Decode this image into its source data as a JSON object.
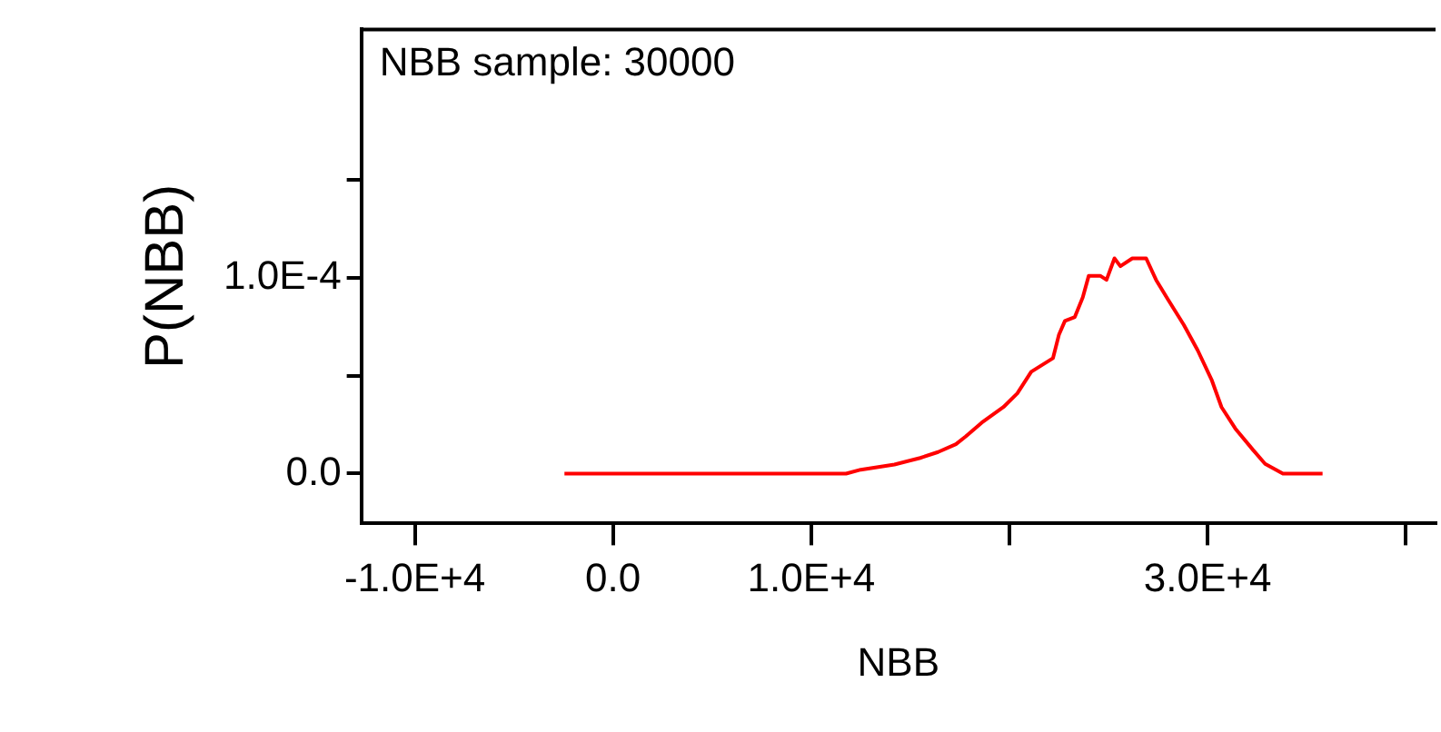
{
  "chart_data": {
    "type": "line",
    "annotations": [
      "NBB sample: 30000"
    ],
    "xlabel": "NBB",
    "ylabel": "P(NBB)",
    "xlim": [
      -12700,
      41500
    ],
    "ylim": [
      -2.55e-05,
      0.000227
    ],
    "xticks": [
      {
        "value": -10000,
        "label": "-1.0E+4"
      },
      {
        "value": 0,
        "label": "0.0"
      },
      {
        "value": 10000,
        "label": "1.0E+4"
      },
      {
        "value": 20000,
        "label": null
      },
      {
        "value": 30000,
        "label": "3.0E+4"
      },
      {
        "value": 40000,
        "label": null
      }
    ],
    "yticks": [
      {
        "value": 0,
        "label": "0.0"
      },
      {
        "value": 5e-05,
        "label": null
      },
      {
        "value": 0.0001,
        "label": "1.0E-4"
      },
      {
        "value": 0.00015,
        "label": null
      }
    ],
    "grid": false,
    "marker": "none",
    "line_style": "solid",
    "series": [
      {
        "color": "#ff0000",
        "x": [
          -2450,
          11760,
          12500,
          14200,
          15500,
          16400,
          17300,
          17800,
          18600,
          19700,
          20400,
          21100,
          22200,
          22500,
          22800,
          23300,
          23700,
          24000,
          24600,
          24900,
          25300,
          25600,
          26200,
          26900,
          27400,
          28000,
          28800,
          29500,
          30200,
          30700,
          31400,
          32300,
          32900,
          33800,
          35800
        ],
        "values": [
          0,
          0,
          2e-06,
          4.6e-06,
          8e-06,
          1.1e-05,
          1.5e-05,
          1.9e-05,
          2.6e-05,
          3.4e-05,
          4.1e-05,
          5.2e-05,
          5.9e-05,
          7.1e-05,
          7.8e-05,
          8e-05,
          9e-05,
          0.000101,
          0.000101,
          9.9e-05,
          0.00011,
          0.000106,
          0.00011,
          0.00011,
          9.9e-05,
          8.9e-05,
          7.6e-05,
          6.3e-05,
          4.8e-05,
          3.4e-05,
          2.3e-05,
          1.2e-05,
          5e-06,
          0,
          0
        ]
      }
    ]
  }
}
